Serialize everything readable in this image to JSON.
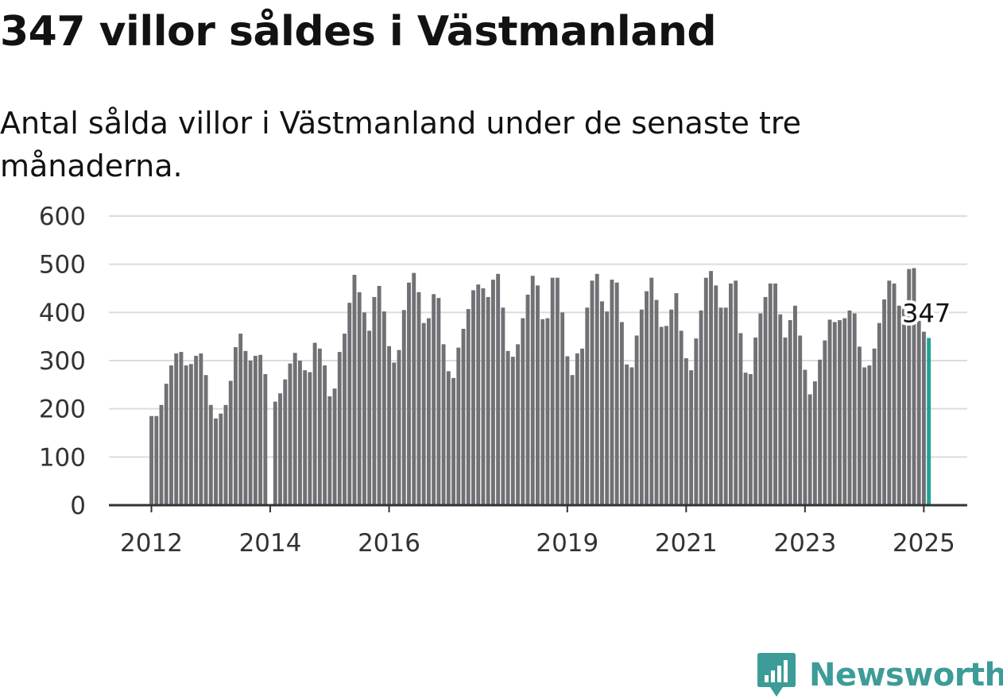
{
  "header": {
    "title": "347 villor såldes i Västmanland",
    "subtitle": "Antal sålda villor i Västmanland under de senaste tre månaderna."
  },
  "colors": {
    "bar": "#717075",
    "highlight": "#1fa394",
    "grid": "#dcdcdc",
    "axis": "#333333",
    "brand": "#3d9c97"
  },
  "chart_data": {
    "type": "bar",
    "start": "2012-01",
    "frequency": "monthly",
    "values": [
      185,
      185,
      208,
      252,
      290,
      315,
      318,
      290,
      293,
      310,
      315,
      270,
      208,
      180,
      190,
      208,
      258,
      328,
      356,
      320,
      300,
      310,
      312,
      272,
      null,
      215,
      232,
      261,
      294,
      316,
      300,
      280,
      276,
      337,
      325,
      290,
      226,
      242,
      318,
      356,
      420,
      478,
      442,
      400,
      362,
      432,
      455,
      402,
      330,
      296,
      322,
      405,
      462,
      482,
      442,
      378,
      388,
      438,
      430,
      334,
      278,
      264,
      327,
      366,
      407,
      446,
      458,
      450,
      432,
      468,
      480,
      410,
      320,
      308,
      334,
      388,
      437,
      476,
      456,
      386,
      388,
      472,
      472,
      400,
      309,
      270,
      315,
      325,
      410,
      466,
      480,
      423,
      402,
      468,
      462,
      380,
      292,
      286,
      352,
      406,
      444,
      472,
      426,
      370,
      372,
      406,
      440,
      362,
      305,
      280,
      346,
      404,
      472,
      486,
      456,
      410,
      410,
      460,
      466,
      357,
      275,
      272,
      348,
      398,
      432,
      460,
      460,
      396,
      348,
      384,
      414,
      352,
      281,
      230,
      257,
      302,
      342,
      385,
      380,
      384,
      388,
      404,
      398,
      329,
      286,
      290,
      325,
      378,
      427,
      466,
      460,
      414,
      412,
      490,
      492,
      388,
      360,
      347
    ],
    "highlight_value": 347,
    "x_tick_labels": [
      "2012",
      "2014",
      "2016",
      "2019",
      "2021",
      "2023",
      "2025"
    ],
    "y_tick_labels": [
      "0",
      "100",
      "200",
      "300",
      "400",
      "500",
      "600"
    ],
    "ylim": [
      0,
      600
    ],
    "grid": true,
    "legend": "none"
  },
  "branding": {
    "logo_name": "Newsworthy",
    "logo_icon": "bar-chart-pin-icon"
  }
}
